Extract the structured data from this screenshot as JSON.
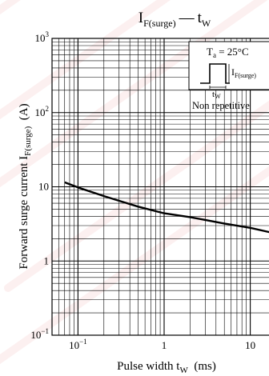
{
  "chart_data": {
    "type": "line",
    "title": {
      "main": "I",
      "main_sub": "F(surge)",
      "dash": "—",
      "var": "t",
      "var_sub": "W"
    },
    "xlabel": {
      "main": "Pulse width  t",
      "sub": "W",
      "unit": "  (ms)"
    },
    "ylabel": {
      "main": "Forward surge current  I",
      "sub": "F(surge)",
      "unit": "  (A)"
    },
    "x_scale": "log",
    "y_scale": "log",
    "xlim": [
      0.05,
      20
    ],
    "ylim": [
      0.1,
      1000
    ],
    "grid": true,
    "x_ticks": [
      {
        "value": 0.1,
        "base": "10",
        "exp": "−1"
      },
      {
        "value": 1,
        "text": "1"
      },
      {
        "value": 10,
        "text": "10"
      }
    ],
    "y_ticks": [
      {
        "value": 0.1,
        "base": "10",
        "exp": "−1"
      },
      {
        "value": 1,
        "text": "1"
      },
      {
        "value": 10,
        "text": "10"
      },
      {
        "value": 100,
        "base": "10",
        "exp": "2"
      },
      {
        "value": 1000,
        "base": "10",
        "exp": "3"
      }
    ],
    "series": [
      {
        "color": "#000000",
        "x": [
          0.07,
          0.1,
          0.2,
          0.5,
          1,
          2,
          5,
          10,
          18
        ],
        "y": [
          11.5,
          9.8,
          7.5,
          5.4,
          4.4,
          3.9,
          3.2,
          2.8,
          2.4
        ]
      }
    ],
    "legend": {
      "position": "top-right",
      "condition": {
        "main": "T",
        "sub": "a",
        "rest": " = 25°C"
      },
      "pulse_label": {
        "main": "I",
        "sub": "F(surge)"
      },
      "width_label": {
        "main": "t",
        "sub": "W"
      },
      "note": "Non repetitive"
    }
  },
  "watermark_color": "#e43a3a"
}
